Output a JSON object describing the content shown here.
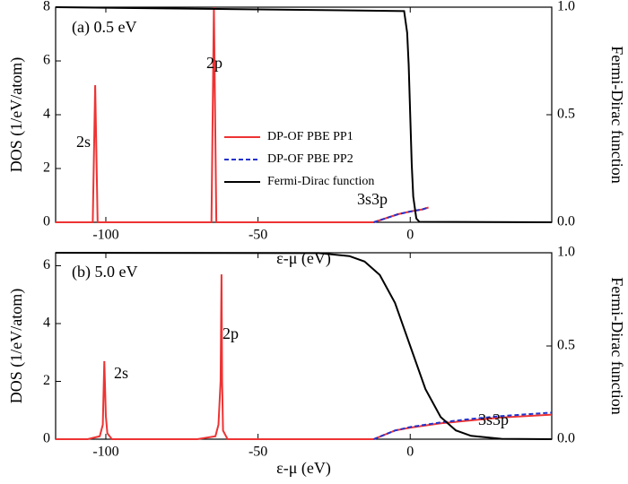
{
  "chart_data": [
    {
      "type": "line",
      "annotations": [
        "(a) 0.5 eV",
        "2s",
        "2p",
        "3s3p"
      ],
      "xlabel": "ε-μ (eV)",
      "ylabel": "DOS (1/eV/atom)",
      "y2label": "Fermi-Dirac function",
      "xlim": [
        -116.5,
        46.5
      ],
      "xticks": [
        -100,
        -50,
        0
      ],
      "ylim": [
        0,
        8
      ],
      "yticks": [
        0,
        2,
        4,
        6,
        8
      ],
      "y2lim": [
        0,
        1
      ],
      "y2ticks": [
        {
          "value": 0,
          "label": "0.0"
        },
        {
          "value": 0.5,
          "label": "0.5"
        },
        {
          "value": 1,
          "label": "1.0"
        }
      ],
      "legend": true,
      "series": [
        {
          "name": "DP-OF PBE PP1",
          "color": "#ee3333",
          "linestyle": "solid",
          "x": [
            -116.5,
            -104.3,
            -103.5,
            -102.7,
            -65.3,
            -64.5,
            -63.7,
            -12,
            -8,
            -4,
            0,
            4,
            6
          ],
          "values": [
            0,
            0,
            5.1,
            0,
            0,
            8,
            0,
            0,
            0.15,
            0.3,
            0.4,
            0.48,
            0.55
          ]
        },
        {
          "name": "DP-OF PBE PP2",
          "color": "#2233cc",
          "linestyle": "dashed",
          "x": [
            -12,
            -8,
            -4,
            0,
            4,
            6
          ],
          "values": [
            0,
            0.15,
            0.3,
            0.4,
            0.48,
            0.55
          ]
        },
        {
          "name": "Fermi-Dirac function",
          "color": "#000000",
          "linestyle": "solid",
          "axis": "y2",
          "x": [
            -116.5,
            -2,
            -1,
            -0.5,
            0,
            0.5,
            1,
            2,
            3,
            46.5
          ],
          "values": [
            1,
            0.982,
            0.881,
            0.731,
            0.5,
            0.269,
            0.119,
            0.018,
            0.002,
            0
          ]
        }
      ]
    },
    {
      "type": "line",
      "annotations": [
        "(b) 5.0 eV",
        "2s",
        "2p",
        "3s3p"
      ],
      "xlabel": "ε-μ (eV)",
      "ylabel": "DOS (1/eV/atom)",
      "y2label": "Fermi-Dirac function",
      "xlim": [
        -116.5,
        46.5
      ],
      "xticks": [
        -100,
        -50,
        0
      ],
      "ylim": [
        0,
        6.45
      ],
      "yticks": [
        0,
        2,
        4,
        6
      ],
      "y2lim": [
        0,
        1
      ],
      "y2ticks": [
        {
          "value": 0,
          "label": "0.0"
        },
        {
          "value": 0.5,
          "label": "0.5"
        },
        {
          "value": 1,
          "label": "1.0"
        }
      ],
      "legend": false,
      "series": [
        {
          "name": "DP-OF PBE PP1",
          "color": "#ee3333",
          "linestyle": "solid",
          "x": [
            -116.5,
            -106,
            -102,
            -101,
            -100.5,
            -100,
            -99.5,
            -98,
            -70,
            -64,
            -63,
            -62.3,
            -62,
            -61.8,
            -61.5,
            -60,
            -12,
            -5,
            0,
            10,
            20,
            30,
            46.5
          ],
          "values": [
            0,
            0,
            0.1,
            0.5,
            2.7,
            0.8,
            0.2,
            0,
            0,
            0.1,
            0.5,
            2,
            5.7,
            2,
            0.3,
            0,
            0,
            0.3,
            0.4,
            0.55,
            0.65,
            0.75,
            0.85
          ]
        },
        {
          "name": "DP-OF PBE PP2",
          "color": "#2233cc",
          "linestyle": "dashed",
          "x": [
            -12,
            -5,
            0,
            10,
            20,
            30,
            46.5
          ],
          "values": [
            0,
            0.3,
            0.42,
            0.58,
            0.7,
            0.8,
            0.92
          ]
        },
        {
          "name": "Fermi-Dirac function",
          "color": "#000000",
          "linestyle": "solid",
          "axis": "y2",
          "x": [
            -116.5,
            -30,
            -20,
            -15,
            -10,
            -5,
            0,
            5,
            10,
            15,
            20,
            30,
            46.5
          ],
          "values": [
            1,
            0.998,
            0.982,
            0.953,
            0.881,
            0.731,
            0.5,
            0.269,
            0.119,
            0.047,
            0.018,
            0.002,
            0
          ]
        }
      ]
    }
  ]
}
